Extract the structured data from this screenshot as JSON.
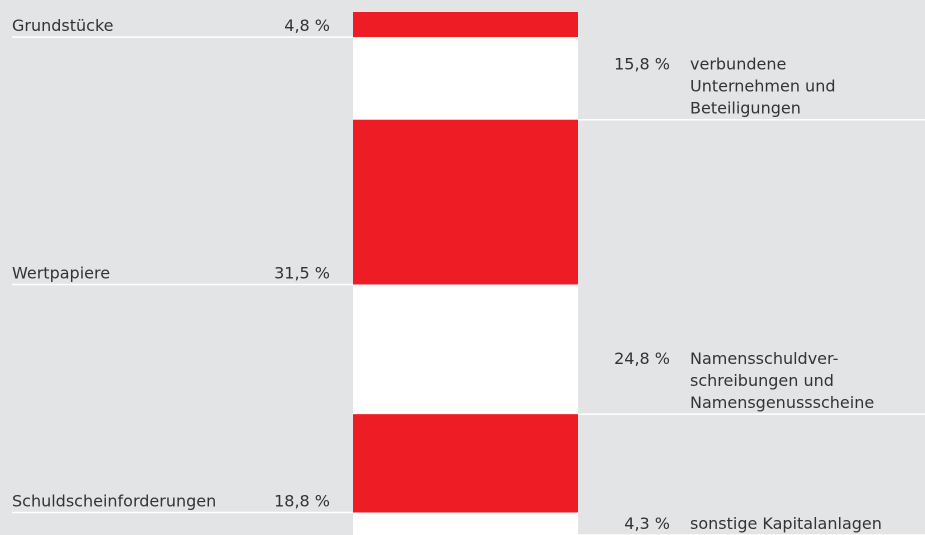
{
  "chart_data": {
    "type": "stacked-column",
    "categories": [
      "Grundstücke",
      "verbundene\nUnternehmen und\nBeteiligungen",
      "Wertpapiere",
      "Namensschuldver-\nschreibungen und\nNamensgenussscheine",
      "Schuldscheinforderungen",
      "sonstige Kapitalanlagen"
    ],
    "values": [
      4.8,
      15.8,
      31.5,
      24.8,
      18.8,
      4.3
    ],
    "value_labels": [
      "4,8 %",
      "15,8 %",
      "31,5 %",
      "24,8 %",
      "18,8 %",
      "4,3 %"
    ],
    "colors": [
      "#ee1c25",
      "#ffffff",
      "#ee1c25",
      "#ffffff",
      "#ee1c25",
      "#ffffff"
    ],
    "ylim": [
      0,
      100
    ]
  }
}
